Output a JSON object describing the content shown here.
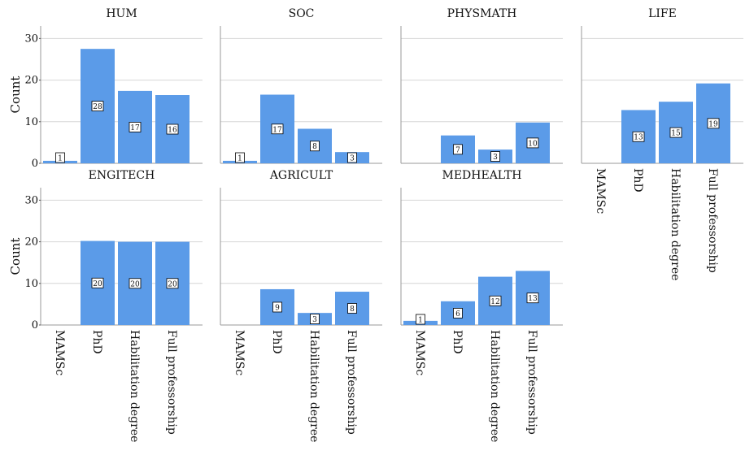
{
  "chart_data": {
    "type": "bar",
    "ylabel": "Count",
    "ylim": [
      0,
      33
    ],
    "yticks": [
      "0",
      "10",
      "20",
      "30"
    ],
    "categories": [
      "MAMSc",
      "PhD",
      "Habilitation degree",
      "Full professorship"
    ],
    "bar_color": "#5b9be8",
    "grid": true,
    "panels": [
      {
        "title": "HUM",
        "values": [
          0.6,
          27.5,
          17.4,
          16.4
        ],
        "labels": [
          "1",
          "28",
          "17",
          "16"
        ]
      },
      {
        "title": "SOC",
        "values": [
          0.6,
          16.5,
          8.3,
          2.7
        ],
        "labels": [
          "1",
          "17",
          "8",
          "3"
        ]
      },
      {
        "title": "PHYSMATH",
        "values": [
          0,
          6.7,
          3.3,
          9.8
        ],
        "labels": [
          "",
          "7",
          "3",
          "10"
        ]
      },
      {
        "title": "LIFE",
        "values": [
          0,
          12.8,
          14.8,
          19.2
        ],
        "labels": [
          "",
          "13",
          "15",
          "19"
        ]
      },
      {
        "title": "ENGITECH",
        "values": [
          0,
          20.2,
          20.0,
          20.0
        ],
        "labels": [
          "",
          "20",
          "20",
          "20"
        ]
      },
      {
        "title": "AGRICULT",
        "values": [
          0,
          8.6,
          2.9,
          8.0
        ],
        "labels": [
          "",
          "9",
          "3",
          "8"
        ]
      },
      {
        "title": "MEDHEALTH",
        "values": [
          1.0,
          5.7,
          11.6,
          13.0
        ],
        "labels": [
          "1",
          "6",
          "12",
          "13"
        ]
      }
    ]
  }
}
